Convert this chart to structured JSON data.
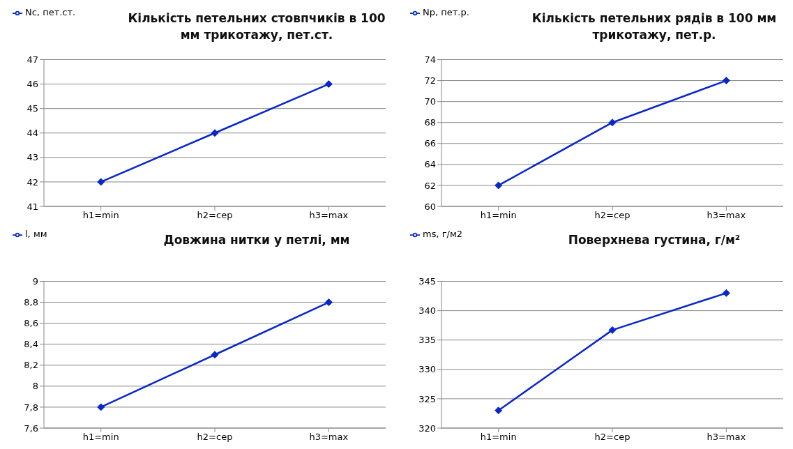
{
  "chart_data": [
    {
      "type": "line",
      "title": "Кількість петельних стовпчиків в 100 мм трикотажу, пет.ст.",
      "categories": [
        "h1=min",
        "h2=сер",
        "h3=max"
      ],
      "series": [
        {
          "name": "Nc, пет.ст.",
          "color": "#0a28c8",
          "values": [
            42,
            44,
            46
          ]
        }
      ],
      "ylim": [
        41,
        47
      ],
      "yticks": [
        41,
        42,
        43,
        44,
        45,
        46,
        47
      ],
      "grid": "y",
      "legend": "top left",
      "marker": "diamond",
      "line_style": "solid"
    },
    {
      "type": "line",
      "title": "Кількість петельних рядів в 100 мм трикотажу, пет.р.",
      "categories": [
        "h1=min",
        "h2=сер",
        "h3=max"
      ],
      "series": [
        {
          "name": "Np, пет.р.",
          "color": "#0a28c8",
          "values": [
            62,
            68,
            72
          ]
        }
      ],
      "ylim": [
        60,
        74
      ],
      "yticks": [
        60,
        62,
        64,
        66,
        68,
        70,
        72,
        74
      ],
      "grid": "y",
      "legend": "top left",
      "marker": "diamond",
      "line_style": "solid"
    },
    {
      "type": "line",
      "title": "Довжина нитки у петлі, мм",
      "categories": [
        "h1=min",
        "h2=сер",
        "h3=max"
      ],
      "series": [
        {
          "name": "l, мм",
          "color": "#0a28c8",
          "values": [
            7.8,
            8.3,
            8.8
          ]
        }
      ],
      "ylim": [
        7.6,
        9
      ],
      "yticks": [
        {
          "value": 7.6,
          "label": "7,6"
        },
        {
          "value": 7.8,
          "label": "7,8"
        },
        8,
        {
          "value": 8.2,
          "label": "8,2"
        },
        {
          "value": 8.4,
          "label": "8,4"
        },
        {
          "value": 8.6,
          "label": "8,6"
        },
        {
          "value": 8.8,
          "label": "8,8"
        },
        9
      ],
      "grid": "y",
      "legend": "top left",
      "marker": "diamond",
      "line_style": "solid"
    },
    {
      "type": "line",
      "title": "Поверхнева густина, г/м²",
      "categories": [
        "h1=min",
        "h2=сер",
        "h3=max"
      ],
      "series": [
        {
          "name": "ms, г/м2",
          "color": "#0a28c8",
          "values": [
            323,
            336.7,
            343
          ]
        }
      ],
      "ylim": [
        320,
        345
      ],
      "yticks": [
        320,
        325,
        330,
        335,
        340,
        345
      ],
      "grid": "y",
      "legend": "top left",
      "marker": "diamond",
      "line_style": "solid"
    }
  ]
}
